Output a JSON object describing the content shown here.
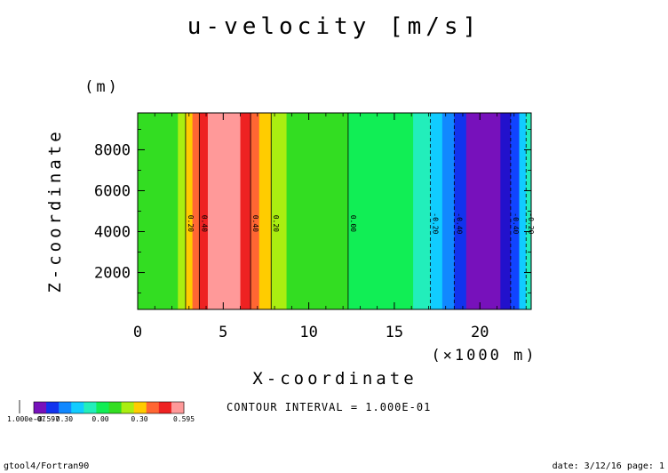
{
  "chart_data": {
    "type": "heatmap",
    "title": "u-velocity [m/s]",
    "xlabel": "X-coordinate",
    "ylabel": "Z-coordinate",
    "x_unit": "(×1000 m)",
    "y_unit": "(m)",
    "xlim": [
      0,
      23
    ],
    "ylim": [
      200,
      9800
    ],
    "x_ticks": [
      0,
      5,
      10,
      15,
      20
    ],
    "y_ticks": [
      2000,
      4000,
      6000,
      8000
    ],
    "x_tick_labels": [
      "0",
      "5",
      "10",
      "15",
      "20"
    ],
    "y_tick_labels": [
      "2000",
      "4000",
      "6000",
      "8000"
    ],
    "bands": [
      {
        "x0": 0.0,
        "x1": 2.35,
        "color": "#33dd22"
      },
      {
        "x0": 2.35,
        "x1": 2.8,
        "color": "#aaee11"
      },
      {
        "x0": 2.8,
        "x1": 3.2,
        "color": "#ffcc00"
      },
      {
        "x0": 3.2,
        "x1": 3.6,
        "color": "#ff6633"
      },
      {
        "x0": 3.6,
        "x1": 4.1,
        "color": "#ee2222"
      },
      {
        "x0": 4.1,
        "x1": 6.0,
        "color": "#ff9999"
      },
      {
        "x0": 6.0,
        "x1": 6.6,
        "color": "#ee2222"
      },
      {
        "x0": 6.6,
        "x1": 7.1,
        "color": "#ff6633"
      },
      {
        "x0": 7.1,
        "x1": 7.8,
        "color": "#ffcc00"
      },
      {
        "x0": 7.8,
        "x1": 8.7,
        "color": "#aaee11"
      },
      {
        "x0": 8.7,
        "x1": 12.3,
        "color": "#33dd22"
      },
      {
        "x0": 12.3,
        "x1": 16.1,
        "color": "#11ee55"
      },
      {
        "x0": 16.1,
        "x1": 17.1,
        "color": "#22eebb"
      },
      {
        "x0": 17.1,
        "x1": 17.8,
        "color": "#11ccff"
      },
      {
        "x0": 17.8,
        "x1": 18.5,
        "color": "#1188ff"
      },
      {
        "x0": 18.5,
        "x1": 19.2,
        "color": "#1133ee"
      },
      {
        "x0": 19.2,
        "x1": 21.2,
        "color": "#7711bb"
      },
      {
        "x0": 21.2,
        "x1": 21.8,
        "color": "#2211cc"
      },
      {
        "x0": 21.8,
        "x1": 22.3,
        "color": "#1144ff"
      },
      {
        "x0": 22.3,
        "x1": 22.7,
        "color": "#11ccff"
      },
      {
        "x0": 22.7,
        "x1": 23.0,
        "color": "#22eebb"
      }
    ],
    "contour_lines": [
      {
        "x": 2.8,
        "label": "0.20",
        "dashed": false
      },
      {
        "x": 3.6,
        "label": "0.40",
        "dashed": false
      },
      {
        "x": 6.6,
        "label": "0.40",
        "dashed": false
      },
      {
        "x": 7.8,
        "label": "0.20",
        "dashed": false
      },
      {
        "x": 12.3,
        "label": "0.00",
        "dashed": false
      },
      {
        "x": 17.1,
        "label": "-0.20",
        "dashed": true
      },
      {
        "x": 18.5,
        "label": "-0.40",
        "dashed": true
      },
      {
        "x": 21.8,
        "label": "-0.40",
        "dashed": true
      },
      {
        "x": 22.7,
        "label": "-0.20",
        "dashed": true
      }
    ],
    "colorbar": {
      "colors": [
        "#7711bb",
        "#1133ee",
        "#1188ff",
        "#11ccff",
        "#22eebb",
        "#11ee55",
        "#33dd22",
        "#aaee11",
        "#ffcc00",
        "#ff6633",
        "#ee2222",
        "#ff9999"
      ],
      "labels": [
        "-0.597",
        "-0.30",
        "0.00",
        "0.30",
        "0.595"
      ],
      "left_label": "1.000e-07"
    },
    "contour_interval": "CONTOUR INTERVAL = 1.000E-01"
  },
  "footer": {
    "left": "gtool4/Fortran90",
    "right": "date: 3/12/16 page: 1"
  }
}
